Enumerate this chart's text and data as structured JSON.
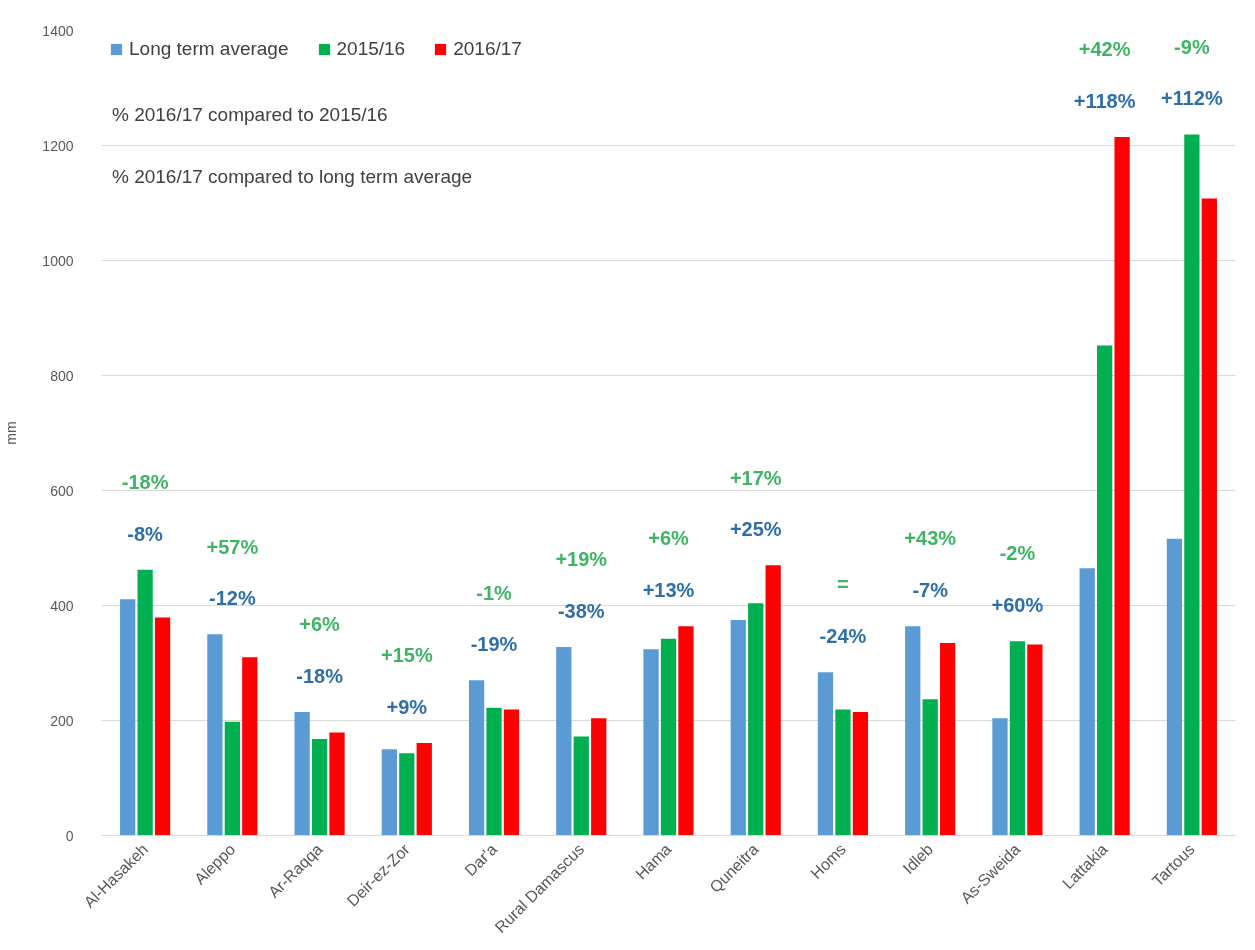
{
  "chart_data": {
    "type": "bar",
    "ylabel": "mm",
    "categories": [
      "Al-Hasakeh",
      "Aleppo",
      "Ar-Raqqa",
      "Deir-ez-Zor",
      "Dar'a",
      "Rural Damascus",
      "Hama",
      "Quneitra",
      "Homs",
      "Idleb",
      "As-Sweida",
      "Lattakia",
      "Tartous"
    ],
    "series": [
      {
        "name": "Long term average",
        "color": "#5b9bd5",
        "values": [
          411,
          350,
          215,
          150,
          270,
          328,
          324,
          375,
          284,
          364,
          204,
          465,
          516
        ]
      },
      {
        "name": "2015/16",
        "color": "#00b050",
        "values": [
          462,
          198,
          168,
          143,
          222,
          172,
          342,
          404,
          219,
          237,
          338,
          852,
          1219
        ]
      },
      {
        "name": "2016/17",
        "color": "#ff0000",
        "values": [
          379,
          310,
          179,
          161,
          219,
          204,
          364,
          470,
          215,
          335,
          332,
          1215,
          1108
        ]
      }
    ],
    "ylim": [
      0,
      1400
    ],
    "yticks": [
      0,
      200,
      400,
      600,
      800,
      1000,
      1200,
      1400
    ],
    "grid": "y",
    "legend": "top left",
    "annotations": [
      "% 2016/17 compared to 2015/16",
      "% 2016/17 compared to long term average",
      "-18%",
      "-8%",
      "+57%",
      "-12%",
      "+6%",
      "-18%",
      "+15%",
      "+9%",
      "-1%",
      "-19%",
      "+19%",
      "-38%",
      "+6%",
      "+13%",
      "+17%",
      "+25%",
      "=",
      "-24%",
      "+43%",
      "-7%",
      "-2%",
      "+60%",
      "+42%",
      "+118%",
      "-9%",
      "+112%"
    ]
  }
}
